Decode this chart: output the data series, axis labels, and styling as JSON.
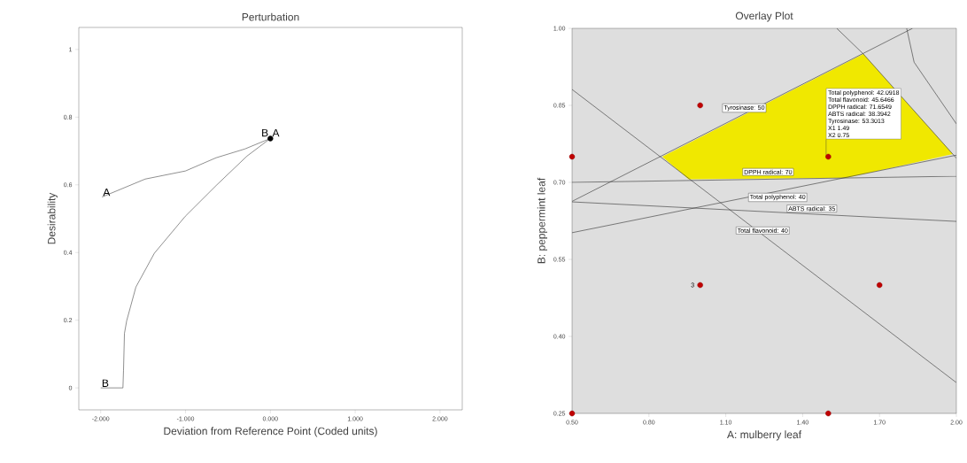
{
  "chart_data": [
    {
      "type": "line",
      "title": "Perturbation",
      "xlabel": "Deviation from Reference Point (Coded units)",
      "ylabel": "Desirability",
      "xlim": [
        -2.258,
        2.262
      ],
      "ylim": [
        -0.065,
        1.065
      ],
      "xticks": [
        {
          "value": -2,
          "label": "-2.000"
        },
        {
          "value": -1,
          "label": "-1.000"
        },
        {
          "value": 0,
          "label": "0.000"
        },
        {
          "value": 1,
          "label": "1.000"
        },
        {
          "value": 2,
          "label": "2.000"
        }
      ],
      "yticks": [
        0,
        0.2,
        0.4,
        0.6,
        0.8,
        1
      ],
      "series": [
        {
          "name": "A",
          "color": "#444444",
          "x": [
            -1.985,
            -1.476,
            -1.0,
            -0.639,
            -0.3,
            0
          ],
          "values": [
            0.564,
            0.617,
            0.641,
            0.68,
            0.706,
            0.737
          ]
        },
        {
          "name": "B",
          "color": "#444444",
          "x": [
            -2,
            -1.738,
            -1.731,
            -1.72,
            -1.694,
            -1.585,
            -1.367,
            -1.003,
            -0.639,
            -0.275,
            0
          ],
          "values": [
            0,
            0,
            0.052,
            0.161,
            0.198,
            0.298,
            0.398,
            0.507,
            0.598,
            0.685,
            0.737
          ]
        },
        {
          "type": "scatter",
          "color": "#000000",
          "x": [
            0
          ],
          "values": [
            0.737
          ]
        }
      ]
    },
    {
      "type": "scatter",
      "title": "Overlay Plot",
      "xlabel": "A: mulberry leaf",
      "ylabel": "B: peppermint leaf",
      "xlim": [
        0.5,
        2.0
      ],
      "ylim": [
        0.25,
        1.0
      ],
      "xticks": [
        {
          "value": 0.5,
          "label": "0.50"
        },
        {
          "value": 0.8,
          "label": "0.80"
        },
        {
          "value": 1.1,
          "label": "1.10"
        },
        {
          "value": 1.4,
          "label": "1.40"
        },
        {
          "value": 1.7,
          "label": "1.70"
        },
        {
          "value": 2.0,
          "label": "2.00"
        }
      ],
      "yticks": [
        {
          "value": 0.25,
          "label": "0.25"
        },
        {
          "value": 0.4,
          "label": "0.40"
        },
        {
          "value": 0.55,
          "label": "0.55"
        },
        {
          "value": 0.7,
          "label": "0.70"
        },
        {
          "value": 0.85,
          "label": "0.85"
        },
        {
          "value": 1.0,
          "label": "1.00"
        }
      ],
      "series": [
        {
          "type": "area",
          "color": "#f0e800",
          "x": [
            0.852,
            0.955,
            1.573,
            1.986,
            1.637
          ],
          "values": [
            0.75,
            0.706,
            0.709,
            0.755,
            0.95
          ]
        },
        {
          "type": "line",
          "color": "#333333",
          "x": [
            0.5,
            1.829
          ],
          "values": [
            0.663,
            1.0
          ]
        },
        {
          "type": "line",
          "color": "#333333",
          "x": [
            1.533,
            1.637,
            1.986,
            2.0
          ],
          "values": [
            1.0,
            0.95,
            0.755,
            0.747
          ]
        },
        {
          "type": "line",
          "color": "#333333",
          "x": [
            1.806,
            1.835,
            2.0
          ],
          "values": [
            1.0,
            0.934,
            0.814
          ]
        },
        {
          "type": "line",
          "color": "#333333",
          "x": [
            0.5,
            2.0
          ],
          "values": [
            0.7,
            0.712
          ]
        },
        {
          "type": "line",
          "color": "#333333",
          "x": [
            0.5,
            2.0
          ],
          "values": [
            0.602,
            0.753
          ]
        },
        {
          "type": "line",
          "color": "#333333",
          "x": [
            0.5,
            2.0
          ],
          "values": [
            0.662,
            0.624
          ]
        },
        {
          "type": "line",
          "color": "#333333",
          "x": [
            0.5,
            2.0
          ],
          "values": [
            0.881,
            0.31
          ]
        },
        {
          "type": "scatter",
          "color": "#c00000",
          "x": [
            0.5,
            0.5,
            1.0,
            1.0,
            1.5,
            1.5,
            1.7
          ],
          "values": [
            0.75,
            0.25,
            0.85,
            0.5,
            0.75,
            0.25,
            0.5
          ]
        }
      ],
      "annotations": [
        "Tyrosinase: 50",
        "DPPH radical: 70",
        "Total polyphenol: 40",
        "ABTS radical: 35",
        "Total flavonoid: 40",
        "Total polyphenol: 42.0918",
        "Total flavonoid: 45.6466",
        "DPPH radical: 71.6549",
        "ABTS radical: 38.3942",
        "Tyrosinase: 53.3013",
        "X1 1.49",
        "X2 0.75",
        {
          "text": "3",
          "x": 1.0,
          "y": 0.5
        }
      ]
    }
  ]
}
